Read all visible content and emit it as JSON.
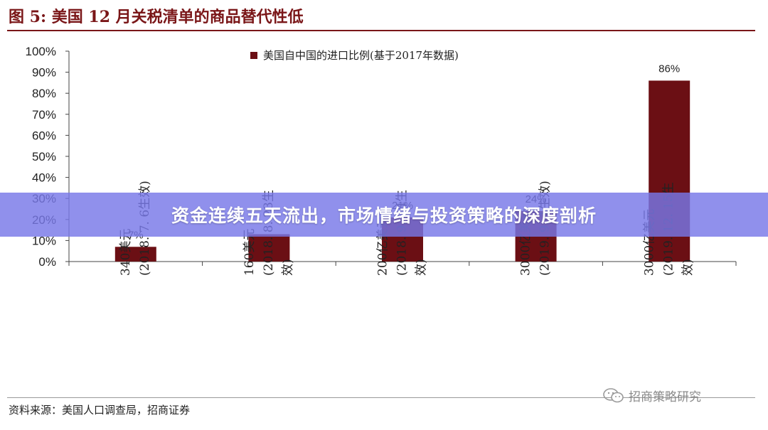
{
  "figure": {
    "title": "图 5:  美国 12 月关税清单的商品替代性低",
    "source": "资料来源：美国人口调查局，招商证券",
    "watermark": "招商策略研究",
    "watermark_icon": "wechat-icon"
  },
  "banner": {
    "text": "资金连续五天流出，市场情绪与投资策略的深度剖析"
  },
  "colors": {
    "bar": "#6b0f14",
    "title": "#7a1618",
    "banner": "#7878e8"
  },
  "chart_data": {
    "type": "bar",
    "categories": [
      [
        "340美元",
        "(2018. 7. 6生效)"
      ],
      [
        "160美元",
        "(2018. 8. 23生",
        "效)"
      ],
      [
        "200亿美元",
        "(2018. 9. 24生",
        "效)"
      ],
      [
        "3000亿美元",
        "(2019. 9. 1生效)"
      ],
      [
        "3000亿美元",
        "(2019. 12. 15生",
        "效)"
      ]
    ],
    "series": [
      {
        "name": "美国自中国的进口比例(基于2017年数据)",
        "values": [
          7,
          13,
          21,
          24,
          86
        ],
        "labels": [
          "7%",
          "",
          "21%",
          "24%",
          "86%"
        ]
      }
    ],
    "yticks": [
      "0%",
      "10%",
      "20%",
      "30%",
      "40%",
      "50%",
      "60%",
      "70%",
      "80%",
      "90%",
      "100%"
    ],
    "ylim": [
      0,
      100
    ],
    "legend_position": "top-center",
    "grid": false
  }
}
